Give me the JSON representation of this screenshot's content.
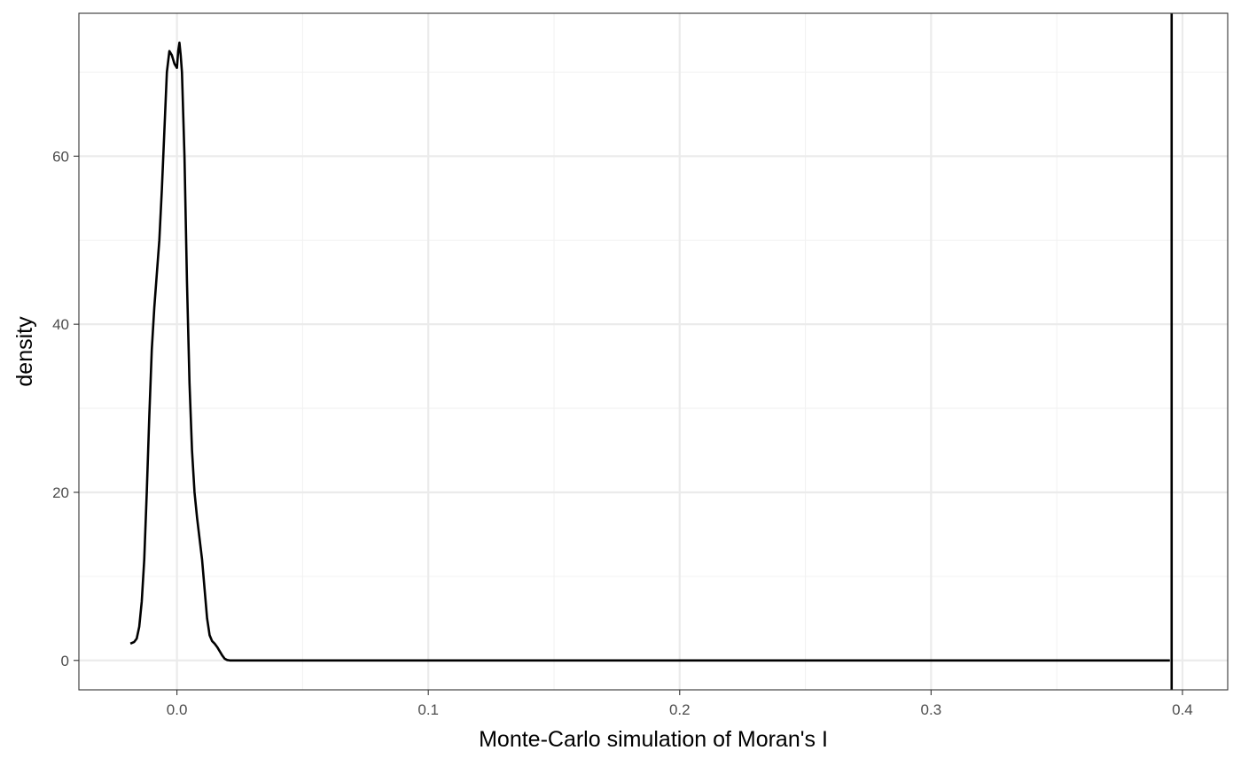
{
  "chart_data": {
    "type": "line",
    "title": "",
    "xlabel": "Monte-Carlo simulation of Moran's I",
    "ylabel": "density",
    "xlim": [
      -0.039,
      0.418
    ],
    "ylim": [
      -3.5,
      77
    ],
    "x_ticks": [
      0.0,
      0.1,
      0.2,
      0.3,
      0.4
    ],
    "x_tick_labels": [
      "0.0",
      "0.1",
      "0.2",
      "0.3",
      "0.4"
    ],
    "x_minor": [
      0.05,
      0.15,
      0.25,
      0.35
    ],
    "y_ticks": [
      0,
      20,
      40,
      60
    ],
    "y_tick_labels": [
      "0",
      "20",
      "40",
      "60"
    ],
    "y_minor": [
      10,
      30,
      50,
      70
    ],
    "grid": true,
    "theme": "black-and-white",
    "series": [
      {
        "x": [
          -0.0185,
          -0.017,
          -0.016,
          -0.015,
          -0.014,
          -0.013,
          -0.012,
          -0.011,
          -0.01,
          -0.009,
          -0.008,
          -0.007,
          -0.006,
          -0.005,
          -0.004,
          -0.003,
          -0.002,
          -0.001,
          0.0,
          0.0005,
          0.001,
          0.0015,
          0.002,
          0.003,
          0.004,
          0.005,
          0.006,
          0.007,
          0.008,
          0.009,
          0.01,
          0.011,
          0.012,
          0.013,
          0.014,
          0.015,
          0.016,
          0.017,
          0.018,
          0.019,
          0.02,
          0.021,
          0.022,
          0.023,
          0.024,
          0.025,
          0.026,
          0.027,
          0.03,
          0.04,
          0.1,
          0.2,
          0.3,
          0.395
        ],
        "y": [
          2.0,
          2.2,
          2.6,
          4.0,
          7.0,
          12.0,
          20.0,
          29.0,
          37.0,
          42.0,
          46.0,
          50.0,
          56.0,
          63.0,
          70.0,
          72.5,
          72.0,
          71.0,
          70.5,
          72.5,
          73.5,
          72.0,
          70.0,
          60.0,
          45.0,
          33.0,
          25.0,
          20.0,
          17.0,
          14.5,
          12.0,
          8.5,
          5.0,
          3.0,
          2.3,
          2.0,
          1.6,
          1.1,
          0.6,
          0.2,
          0.05,
          0.0,
          0.0,
          0.0,
          0.0,
          0.0,
          0.0,
          0.0,
          0.0,
          0.0,
          0.0,
          0.0,
          0.0,
          0.0
        ]
      }
    ],
    "vline": {
      "x": 0.3957
    }
  }
}
